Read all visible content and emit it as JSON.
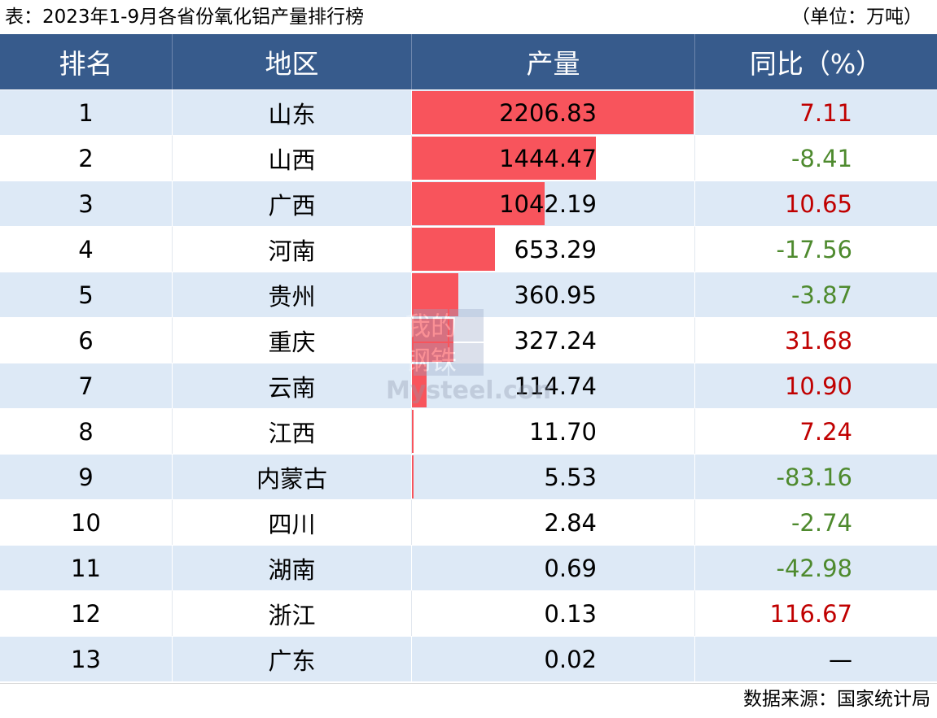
{
  "caption": {
    "title": "表：2023年1-9月各省份氧化铝产量排行榜",
    "unit": "（单位：万吨）"
  },
  "headers": {
    "rank": "排名",
    "region": "地区",
    "volume": "产量",
    "yoy": "同比（%）"
  },
  "rows": [
    {
      "rank": "1",
      "region": "山东",
      "volume": "2206.83",
      "yoy": "7.11"
    },
    {
      "rank": "2",
      "region": "山西",
      "volume": "1444.47",
      "yoy": "-8.41"
    },
    {
      "rank": "3",
      "region": "广西",
      "volume": "1042.19",
      "yoy": "10.65"
    },
    {
      "rank": "4",
      "region": "河南",
      "volume": "653.29",
      "yoy": "-17.56"
    },
    {
      "rank": "5",
      "region": "贵州",
      "volume": "360.95",
      "yoy": "-3.87"
    },
    {
      "rank": "6",
      "region": "重庆",
      "volume": "327.24",
      "yoy": "31.68"
    },
    {
      "rank": "7",
      "region": "云南",
      "volume": "114.74",
      "yoy": "10.90"
    },
    {
      "rank": "8",
      "region": "江西",
      "volume": "11.70",
      "yoy": "7.24"
    },
    {
      "rank": "9",
      "region": "内蒙古",
      "volume": "5.53",
      "yoy": "-83.16"
    },
    {
      "rank": "10",
      "region": "四川",
      "volume": "2.84",
      "yoy": "-2.74"
    },
    {
      "rank": "11",
      "region": "湖南",
      "volume": "0.69",
      "yoy": "-42.98"
    },
    {
      "rank": "12",
      "region": "浙江",
      "volume": "0.13",
      "yoy": "116.67"
    },
    {
      "rank": "13",
      "region": "广东",
      "volume": "0.02",
      "yoy": "—"
    }
  ],
  "chart_data": {
    "type": "table",
    "title": "表：2023年1-9月各省份氧化铝产量排行榜",
    "unit": "（单位：万吨）",
    "columns": [
      "排名",
      "地区",
      "产量",
      "同比（%）"
    ],
    "categories": [
      "山东",
      "山西",
      "广西",
      "河南",
      "贵州",
      "重庆",
      "云南",
      "江西",
      "内蒙古",
      "四川",
      "湖南",
      "浙江",
      "广东"
    ],
    "series": [
      {
        "name": "产量",
        "values": [
          2206.83,
          1444.47,
          1042.19,
          653.29,
          360.95,
          327.24,
          114.74,
          11.7,
          5.53,
          2.84,
          0.69,
          0.13,
          0.02
        ]
      },
      {
        "name": "同比（%）",
        "values": [
          7.11,
          -8.41,
          10.65,
          -17.56,
          -3.87,
          31.68,
          10.9,
          7.24,
          -83.16,
          -2.74,
          -42.98,
          116.67,
          null
        ]
      }
    ]
  },
  "watermark": {
    "line1": "我的",
    "line2": "钢铁",
    "brand": "Mysteel.com"
  },
  "footer": {
    "source": "数据来源：国家统计局"
  },
  "colors": {
    "header_bg": "#375b8c",
    "band": "#dde9f6",
    "bar": "#f8545c",
    "positive": "#c00000",
    "negative": "#4e8a2e"
  }
}
